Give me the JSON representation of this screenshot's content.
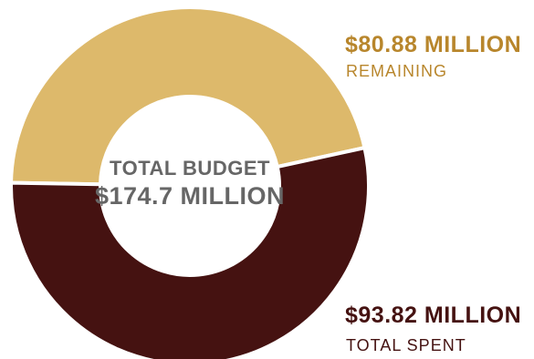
{
  "chart_data": {
    "type": "pie",
    "style": "donut",
    "center": {
      "label": "TOTAL BUDGET",
      "value": "$174.7 MILLION"
    },
    "slices": [
      {
        "name": "remaining",
        "value": 80.88,
        "value_label": "$80.88 MILLION",
        "caption": "REMAINING",
        "color": "#DDB96B",
        "label_color": "#B8862C"
      },
      {
        "name": "spent",
        "value": 93.82,
        "value_label": "$93.82 MILLION",
        "caption": "TOTAL SPENT",
        "color": "#451211",
        "label_color": "#451211"
      }
    ],
    "center_text_color": "#666666"
  }
}
